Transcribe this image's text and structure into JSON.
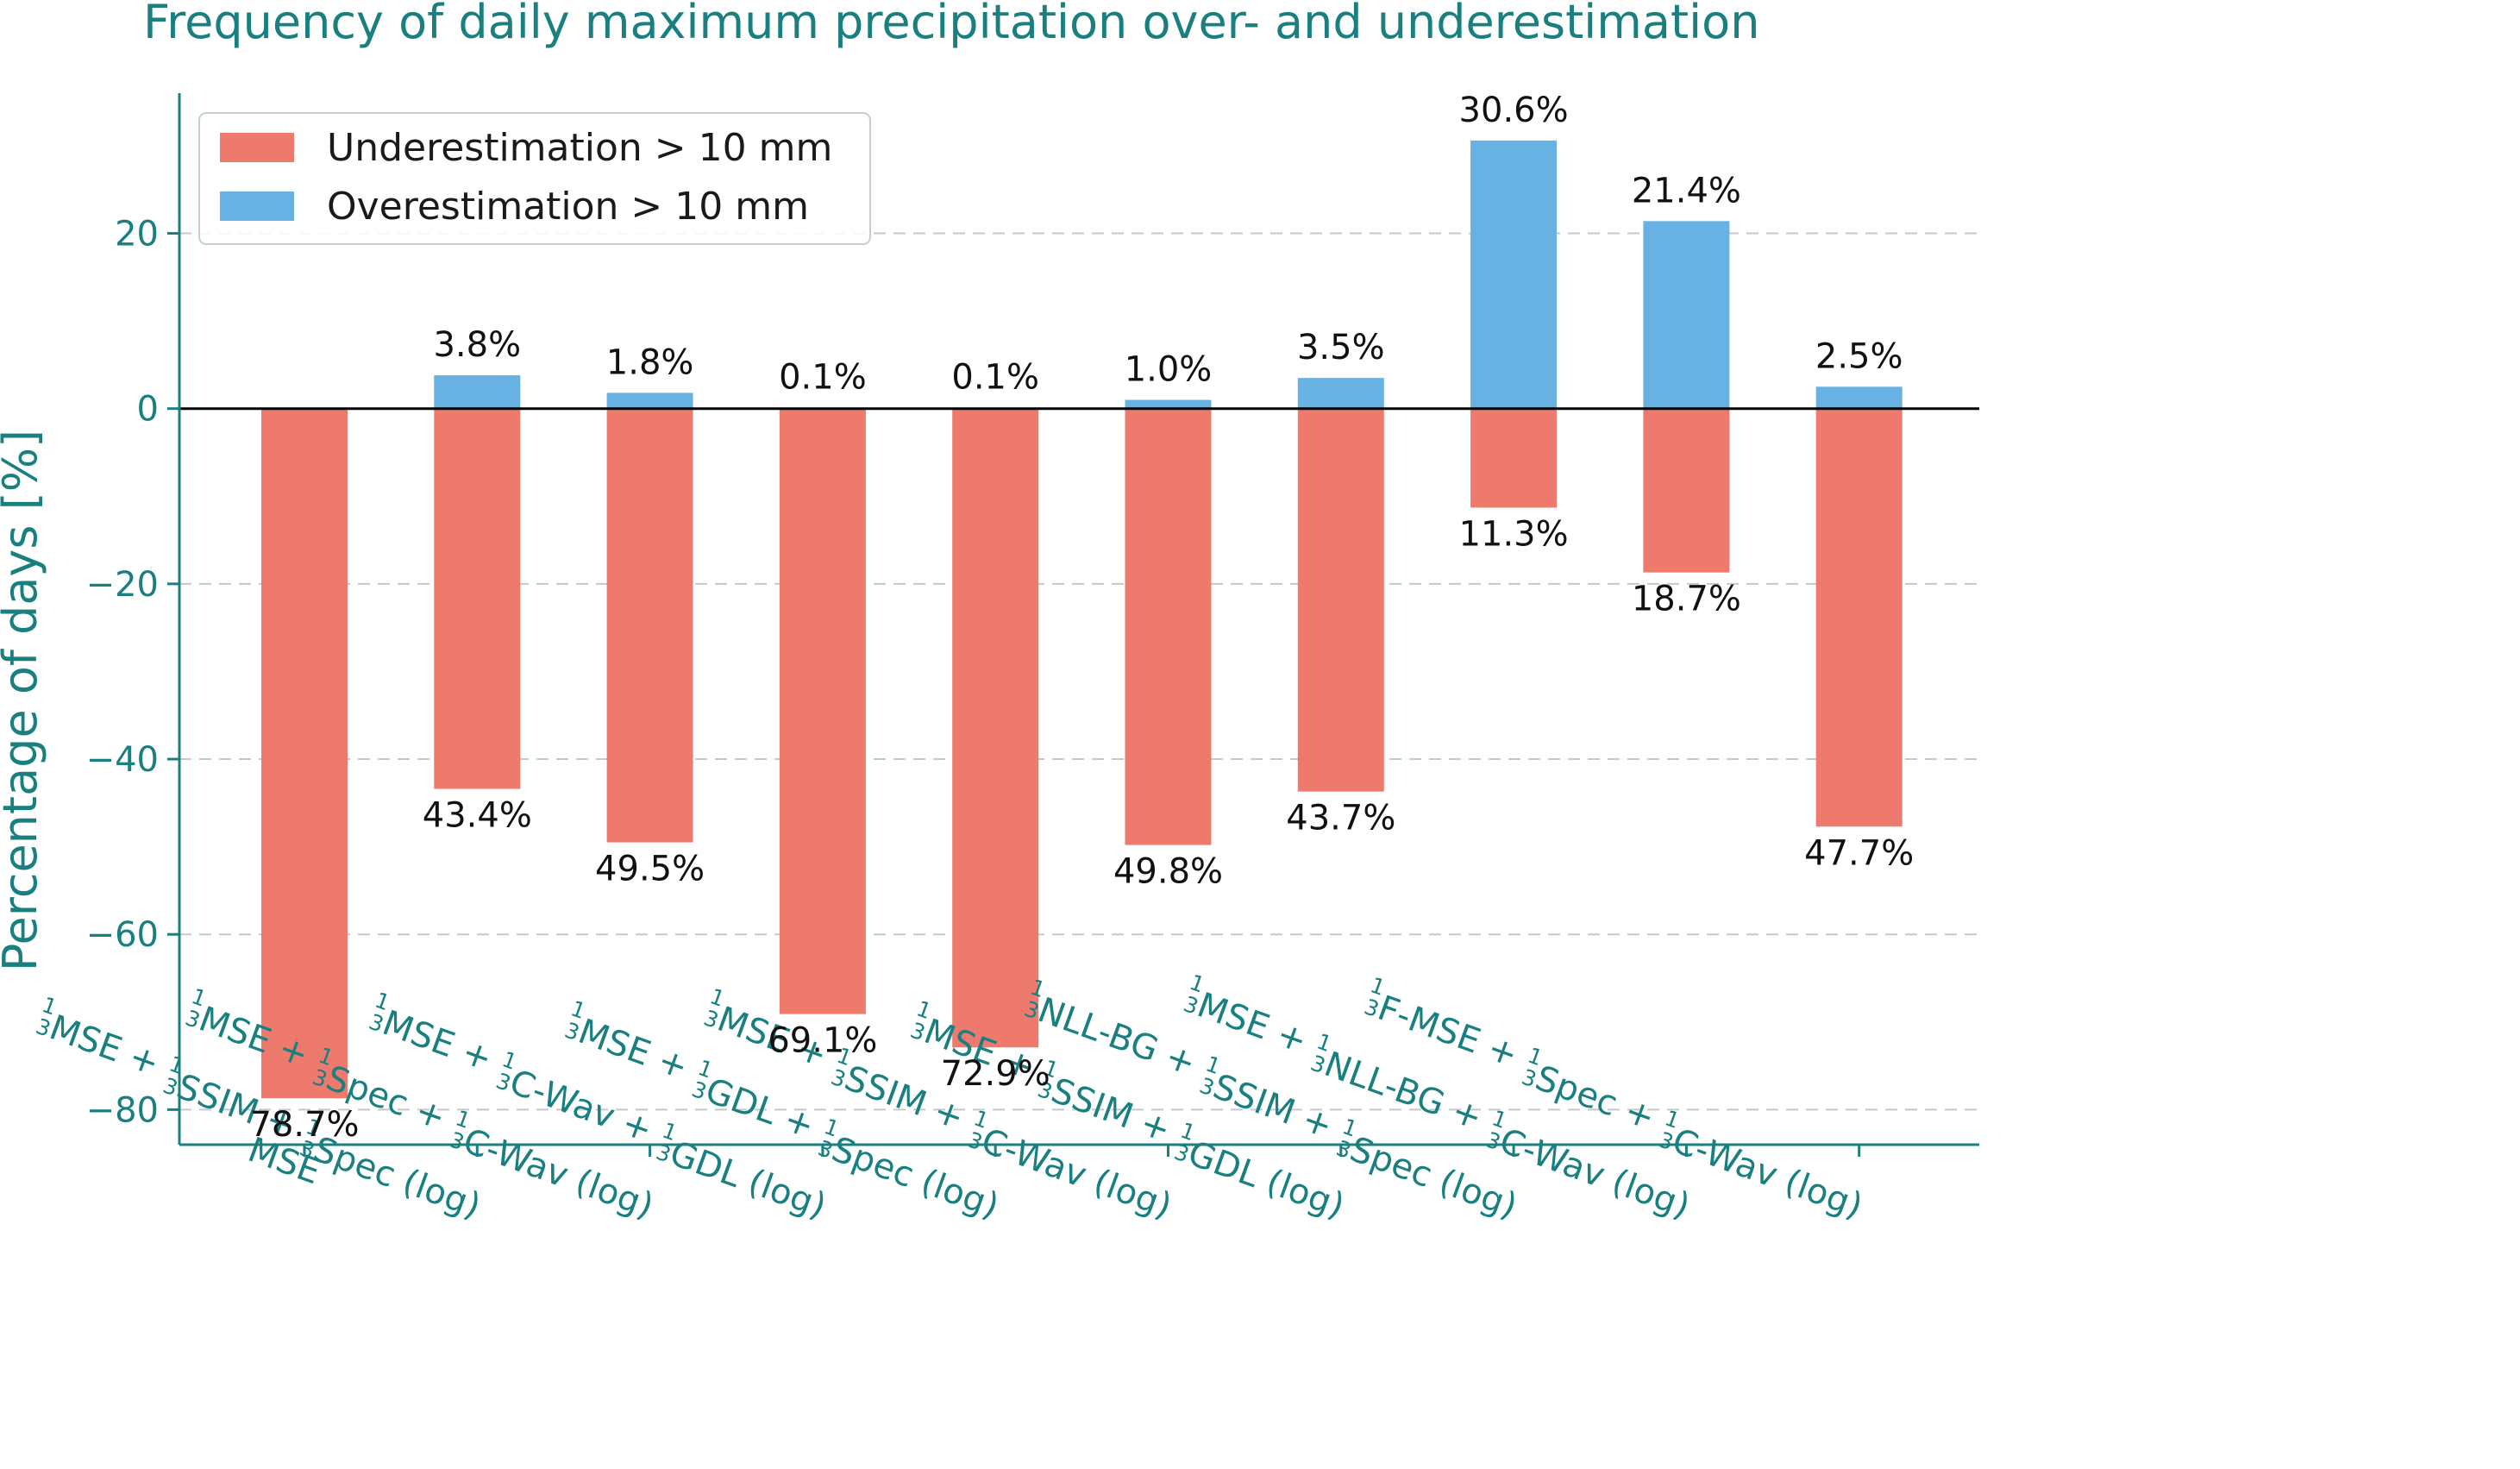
{
  "chart_data": {
    "type": "bar",
    "title": "Frequency of daily maximum precipitation over- and underestimation",
    "ylabel": "Percentage of days [%]",
    "xlabel": "",
    "ylim": [
      -84,
      36
    ],
    "yticks": [
      -80,
      -60,
      -40,
      -20,
      0,
      20
    ],
    "ytick_labels": [
      "−80",
      "−60",
      "−40",
      "−20",
      "0",
      "20"
    ],
    "grid": "y-dashed",
    "legend_position": "top-left",
    "categories": [
      [
        {
          "t": "MSE"
        }
      ],
      [
        {
          "f": "1"
        },
        {
          "t": "MSE + "
        },
        {
          "f": "1"
        },
        {
          "t": "SSIM + "
        },
        {
          "f": "1"
        },
        {
          "t": "Spec (log)"
        }
      ],
      [
        {
          "f": "1"
        },
        {
          "t": "MSE + "
        },
        {
          "f": "1"
        },
        {
          "t": "Spec + "
        },
        {
          "f": "1"
        },
        {
          "t": "C-Wav (log)"
        }
      ],
      [
        {
          "f": "1"
        },
        {
          "t": "MSE + "
        },
        {
          "f": "1"
        },
        {
          "t": "C-Wav + "
        },
        {
          "f": "1"
        },
        {
          "t": "GDL (log)"
        }
      ],
      [
        {
          "f": "1"
        },
        {
          "t": "MSE + "
        },
        {
          "f": "1"
        },
        {
          "t": "GDL + "
        },
        {
          "f": "1"
        },
        {
          "t": "Spec (log)"
        }
      ],
      [
        {
          "f": "1"
        },
        {
          "t": "MSE + "
        },
        {
          "f": "1"
        },
        {
          "t": "SSIM + "
        },
        {
          "f": "1"
        },
        {
          "t": "C-Wav (log)"
        }
      ],
      [
        {
          "f": "1"
        },
        {
          "t": "MSE + "
        },
        {
          "f": "1"
        },
        {
          "t": "SSIM + "
        },
        {
          "f": "1"
        },
        {
          "t": "GDL (log)"
        }
      ],
      [
        {
          "f": "1"
        },
        {
          "t": "NLL-BG + "
        },
        {
          "f": "1"
        },
        {
          "t": "SSIM + "
        },
        {
          "f": "1"
        },
        {
          "t": "Spec (log)"
        }
      ],
      [
        {
          "f": "1"
        },
        {
          "t": "MSE + "
        },
        {
          "f": "1"
        },
        {
          "t": "NLL-BG + "
        },
        {
          "f": "1"
        },
        {
          "t": "C-Wav (log)"
        }
      ],
      [
        {
          "f": "1"
        },
        {
          "t": "F-MSE + "
        },
        {
          "f": "1"
        },
        {
          "t": "Spec + "
        },
        {
          "f": "1"
        },
        {
          "t": "C-Wav (log)"
        }
      ]
    ],
    "frac_denominator": "3",
    "series": [
      {
        "name": "Underestimation > 10 mm",
        "color": "#ee7a6e",
        "values": [
          -78.7,
          -43.4,
          -49.5,
          -69.1,
          -72.9,
          -49.8,
          -43.7,
          -11.3,
          -18.7,
          -47.7
        ],
        "labels": [
          "78.7%",
          "43.4%",
          "49.5%",
          "69.1%",
          "72.9%",
          "49.8%",
          "43.7%",
          "11.3%",
          "18.7%",
          "47.7%"
        ]
      },
      {
        "name": "Overestimation > 10 mm",
        "color": "#67b2e2",
        "values": [
          0,
          3.8,
          1.8,
          0.1,
          0.1,
          1.0,
          3.5,
          30.6,
          21.4,
          2.5
        ],
        "labels": [
          "",
          "3.8%",
          "1.8%",
          "0.1%",
          "0.1%",
          "1.0%",
          "3.5%",
          "30.6%",
          "21.4%",
          "2.5%"
        ]
      }
    ]
  }
}
